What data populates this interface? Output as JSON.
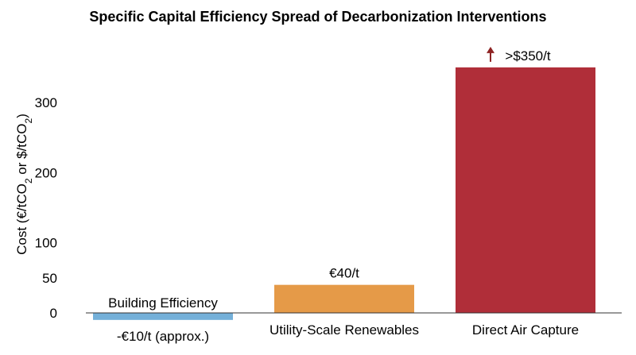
{
  "chart_data": {
    "type": "bar",
    "title": "Specific Capital Efficiency Spread of Decarbonization Interventions",
    "ylabel": {
      "prefix": "Cost (€/tCO",
      "sub1": "2",
      "mid": " or $/tCO",
      "sub2": "2",
      "suffix": ")"
    },
    "ylim": [
      -15,
      370
    ],
    "yticks": [
      0,
      50,
      100,
      200,
      300
    ],
    "categories": [
      "Building Efficiency",
      "Utility-Scale Renewables",
      "Direct Air Capture"
    ],
    "values": [
      -10,
      40,
      350
    ],
    "data_labels": [
      "-€10/t (approx.)",
      "€40/t",
      ">$350/t"
    ],
    "colors": [
      "#74b0d9",
      "#e59a48",
      "#b02e39"
    ],
    "arrow_color": "#8e2323",
    "grid": false,
    "legend": "none"
  }
}
